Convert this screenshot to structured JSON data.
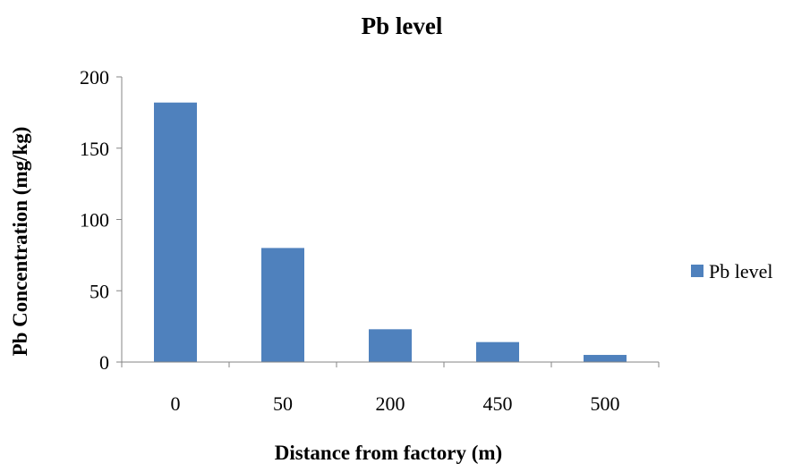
{
  "chart_data": {
    "type": "bar",
    "title": "Pb level",
    "xlabel": "Distance from factory (m)",
    "ylabel": "Pb Concentration (mg/kg)",
    "categories": [
      "0",
      "50",
      "200",
      "450",
      "500"
    ],
    "series": [
      {
        "name": "Pb level",
        "values": [
          182,
          80,
          23,
          14,
          5
        ],
        "color": "#4F81BD"
      }
    ],
    "ylim": [
      0,
      200
    ],
    "yticks": [
      "0",
      "50",
      "100",
      "150",
      "200"
    ],
    "grid": false,
    "legend_position": "right"
  }
}
